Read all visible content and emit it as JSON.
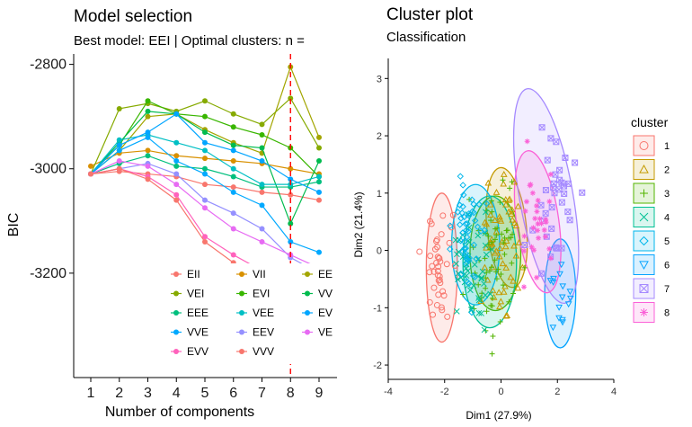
{
  "chart_data": [
    {
      "type": "line",
      "title": "Model selection",
      "subtitle": "Best model: EEI | Optimal clusters: n =",
      "xlabel": "Number of components",
      "ylabel": "BIC",
      "x": [
        1,
        2,
        3,
        4,
        5,
        6,
        7,
        8,
        9
      ],
      "x_ticks": [
        "1",
        "2",
        "3",
        "4",
        "5",
        "6",
        "7",
        "8",
        "9"
      ],
      "ylim": [
        -3400,
        -2780
      ],
      "y_ticks": [
        -3200,
        -3000,
        -2800
      ],
      "y_tick_labels": [
        "-3200",
        "-3000",
        "-2800"
      ],
      "optimal_line_x": 8,
      "grid": false,
      "legend_position": "bottom-right",
      "series": [
        {
          "name": "EII",
          "color": "#F8766D",
          "values": [
            -3010,
            -3005,
            -3010,
            -3015,
            -3030,
            -3035,
            -3045,
            -3050,
            -3060
          ]
        },
        {
          "name": "VII",
          "color": "#D89000",
          "values": [
            -2995,
            -2970,
            -2965,
            -2975,
            -2980,
            -2985,
            -2990,
            -3000,
            -3010
          ]
        },
        {
          "name": "EE",
          "color": "#A3A500",
          "values": [
            -3010,
            -2965,
            -2900,
            -2895,
            -2925,
            -2950,
            -2970,
            -2805,
            -2940
          ]
        },
        {
          "name": "VEI",
          "color": "#86AA00",
          "values": [
            -3010,
            -2885,
            -2875,
            -2890,
            -2870,
            -2895,
            -2915,
            -2865,
            -2960
          ]
        },
        {
          "name": "EVI",
          "color": "#39B600",
          "values": [
            -3010,
            -2955,
            -2870,
            -2895,
            -2900,
            -2920,
            -2935,
            -2960,
            -3015
          ]
        },
        {
          "name": "VV",
          "color": "#00BB4E",
          "values": [
            -3010,
            -2950,
            -2890,
            -2895,
            -2930,
            -2955,
            -2960,
            -3105,
            -2985
          ]
        },
        {
          "name": "EEE",
          "color": "#00BF7D",
          "values": [
            -3010,
            -2990,
            -2975,
            -2995,
            -3000,
            -3015,
            -3035,
            -3035,
            -3025
          ]
        },
        {
          "name": "VEE",
          "color": "#00BFC4",
          "values": [
            -3010,
            -2945,
            -2935,
            -2950,
            -2965,
            -3000,
            -3030,
            -3030,
            -3015
          ]
        },
        {
          "name": "EV",
          "color": "#00A5FF",
          "values": [
            -3010,
            -2955,
            -2930,
            -2895,
            -2950,
            -2965,
            -2985,
            -3020,
            -3045
          ]
        },
        {
          "name": "VVE",
          "color": "#00A9FF",
          "values": [
            -3010,
            -2965,
            -2940,
            -2985,
            -3010,
            -3045,
            -3070,
            -3140,
            -3160
          ]
        },
        {
          "name": "EEV",
          "color": "#9590FF",
          "values": [
            -3010,
            -3000,
            -2990,
            -3010,
            -3060,
            -3085,
            -3115,
            -3170,
            -3200
          ]
        },
        {
          "name": "VE",
          "color": "#E76BF3",
          "values": [
            -3010,
            -2985,
            -2995,
            -3030,
            -3075,
            -3115,
            -3140,
            -3165,
            -3190
          ]
        },
        {
          "name": "EVV",
          "color": "#FF62BC",
          "values": [
            -3010,
            -3000,
            -3015,
            -3050,
            -3130,
            -3165,
            -3195,
            -3225,
            -3245
          ]
        },
        {
          "name": "VVV",
          "color": "#F8766D",
          "values": [
            -3010,
            -3000,
            -3020,
            -3060,
            -3140,
            -3180,
            -3215,
            -3250,
            -3270
          ]
        }
      ]
    },
    {
      "type": "scatter",
      "title": "Cluster plot",
      "subtitle": "Classification",
      "xlabel": "Dim1 (27.9%)",
      "ylabel": "Dim2 (21.4%)",
      "xlim": [
        -4,
        4
      ],
      "ylim": [
        -2.25,
        3.35
      ],
      "x_ticks": [
        -4,
        -2,
        0,
        2,
        4
      ],
      "x_tick_labels": [
        "-4",
        "-2",
        "0",
        "2",
        "4"
      ],
      "y_ticks": [
        -2,
        -1,
        0,
        1,
        2,
        3
      ],
      "y_tick_labels": [
        "-2",
        "-1",
        "0",
        "1",
        "2",
        "3"
      ],
      "grid": false,
      "legend_title": "cluster",
      "legend_position": "right",
      "clusters": [
        {
          "name": "1",
          "symbol": "circle",
          "color": "#F8766D",
          "center": [
            -2.1,
            -0.3
          ],
          "spread": [
            0.45,
            0.75
          ],
          "n": 40
        },
        {
          "name": "2",
          "symbol": "triangle",
          "color": "#C49A00",
          "center": [
            0.1,
            0.2
          ],
          "spread": [
            0.6,
            1.0
          ],
          "n": 60
        },
        {
          "name": "3",
          "symbol": "plus",
          "color": "#53B400",
          "center": [
            -0.2,
            -0.1
          ],
          "spread": [
            0.7,
            0.95
          ],
          "n": 60
        },
        {
          "name": "4",
          "symbol": "cross",
          "color": "#00C094",
          "center": [
            -0.9,
            -0.4
          ],
          "spread": [
            0.6,
            0.75
          ],
          "n": 50
        },
        {
          "name": "5",
          "symbol": "diamond",
          "color": "#00B6EB",
          "center": [
            -1.2,
            0.3
          ],
          "spread": [
            0.55,
            0.8
          ],
          "n": 50
        },
        {
          "name": "6",
          "symbol": "triangle-down",
          "color": "#06A4FF",
          "center": [
            2.1,
            -0.8
          ],
          "spread": [
            0.35,
            0.6
          ],
          "n": 15
        },
        {
          "name": "7",
          "symbol": "square-x",
          "color": "#A58AFF",
          "center": [
            1.9,
            0.9
          ],
          "spread": [
            0.7,
            1.0
          ],
          "n": 35
        },
        {
          "name": "8",
          "symbol": "asterisk",
          "color": "#FB61D7",
          "center": [
            1.3,
            0.4
          ],
          "spread": [
            0.55,
            0.8
          ],
          "n": 30
        }
      ],
      "ellipses": [
        {
          "cluster": "1",
          "cx": -2.1,
          "cy": -0.3,
          "rx": 0.55,
          "ry": 1.3,
          "angle": 0,
          "color": "#F8766D"
        },
        {
          "cluster": "2",
          "cx": 0.2,
          "cy": 0.4,
          "rx": 0.7,
          "ry": 1.05,
          "angle": 6,
          "color": "#C49A00"
        },
        {
          "cluster": "3",
          "cx": -0.2,
          "cy": -0.05,
          "rx": 0.9,
          "ry": 1.0,
          "angle": 0,
          "color": "#53B400"
        },
        {
          "cluster": "4",
          "cx": -0.4,
          "cy": -0.2,
          "rx": 0.95,
          "ry": 1.15,
          "angle": 0,
          "color": "#00C094"
        },
        {
          "cluster": "5",
          "cx": -0.9,
          "cy": 0.1,
          "rx": 0.85,
          "ry": 1.05,
          "angle": 0,
          "color": "#00B6EB"
        },
        {
          "cluster": "6",
          "cx": 2.1,
          "cy": -0.75,
          "rx": 0.55,
          "ry": 0.95,
          "angle": 0,
          "color": "#06A4FF"
        },
        {
          "cluster": "7",
          "cx": 1.6,
          "cy": 0.95,
          "rx": 0.95,
          "ry": 1.9,
          "angle": 10,
          "color": "#A58AFF"
        },
        {
          "cluster": "8",
          "cx": 1.3,
          "cy": 0.5,
          "rx": 0.75,
          "ry": 1.25,
          "angle": 8,
          "color": "#FB61D7"
        }
      ]
    }
  ]
}
